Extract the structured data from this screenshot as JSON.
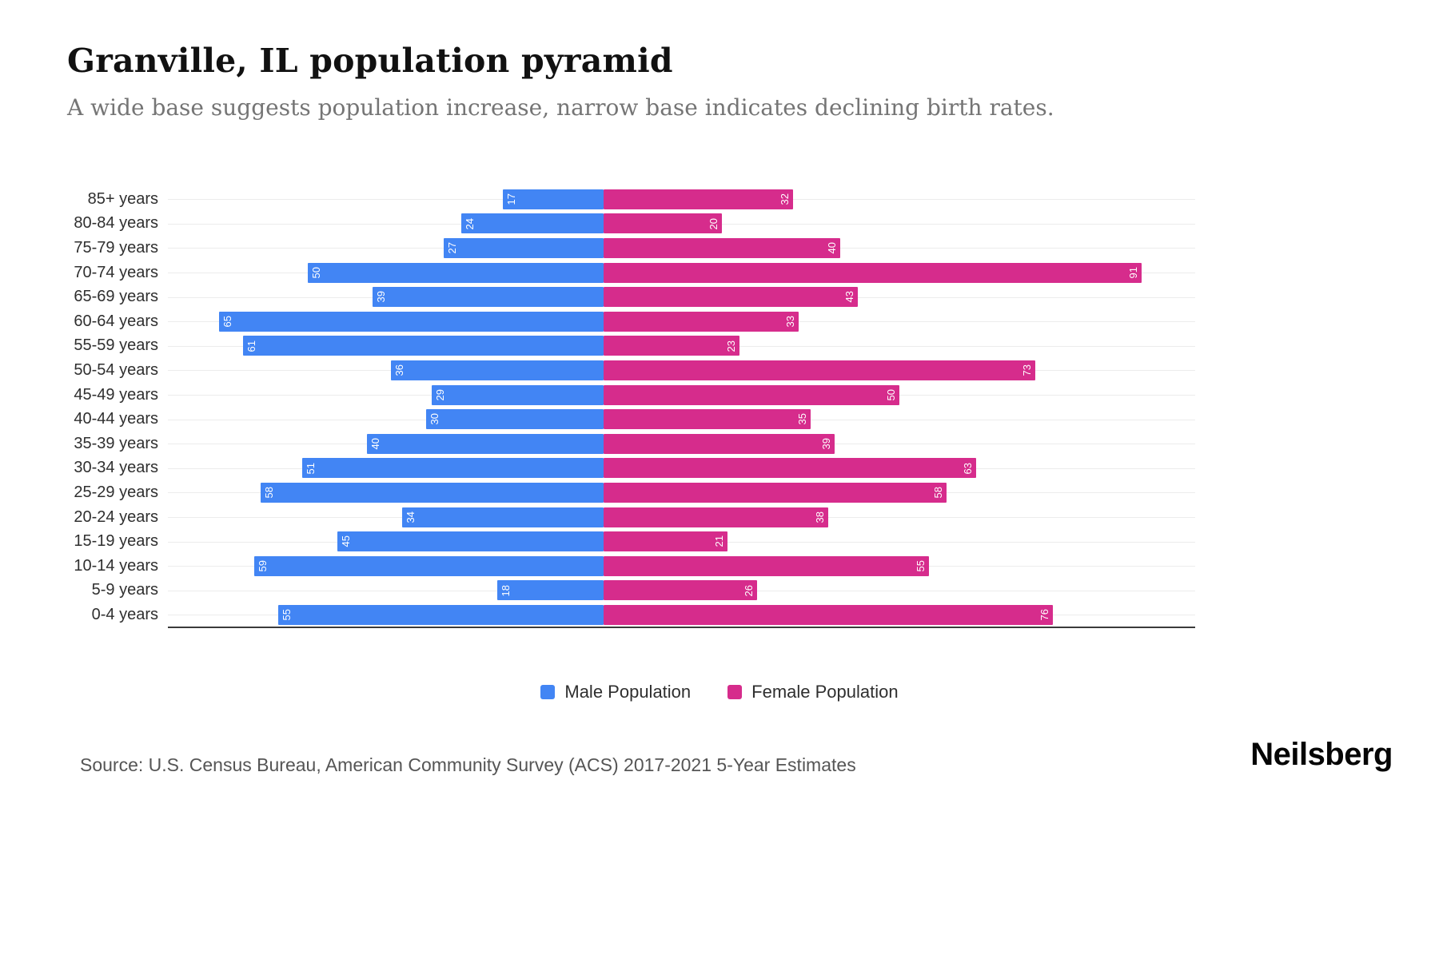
{
  "header": {
    "title": "Granville, IL population pyramid",
    "subtitle": "A wide base suggests population increase, narrow base indicates declining birth rates."
  },
  "chart_data": {
    "type": "bar",
    "variant": "population-pyramid",
    "orientation": "horizontal",
    "categories": [
      "85+ years",
      "80-84 years",
      "75-79 years",
      "70-74 years",
      "65-69 years",
      "60-64 years",
      "55-59 years",
      "50-54 years",
      "45-49 years",
      "40-44 years",
      "35-39 years",
      "30-34 years",
      "25-29 years",
      "20-24 years",
      "15-19 years",
      "10-14 years",
      "5-9 years",
      "0-4 years"
    ],
    "series": [
      {
        "name": "Male Population",
        "side": "left",
        "color": "#4285F4",
        "values": [
          17,
          24,
          27,
          50,
          39,
          65,
          61,
          36,
          29,
          30,
          40,
          51,
          58,
          34,
          45,
          59,
          18,
          55
        ]
      },
      {
        "name": "Female Population",
        "side": "right",
        "color": "#D62C8C",
        "values": [
          32,
          20,
          40,
          91,
          43,
          33,
          23,
          73,
          50,
          35,
          39,
          63,
          58,
          38,
          21,
          55,
          26,
          76
        ]
      }
    ],
    "value_labels": "inside-end-rotated",
    "left_axis_max": 74,
    "right_axis_max": 100,
    "grid": "horizontal-light",
    "legend_position": "bottom-center"
  },
  "legend": {
    "items": [
      {
        "label": "Male Population",
        "color": "#4285F4"
      },
      {
        "label": "Female Population",
        "color": "#D62C8C"
      }
    ]
  },
  "footer": {
    "source": "Source: U.S. Census Bureau, American Community Survey (ACS) 2017-2021 5-Year Estimates",
    "logo": "Neilsberg"
  }
}
